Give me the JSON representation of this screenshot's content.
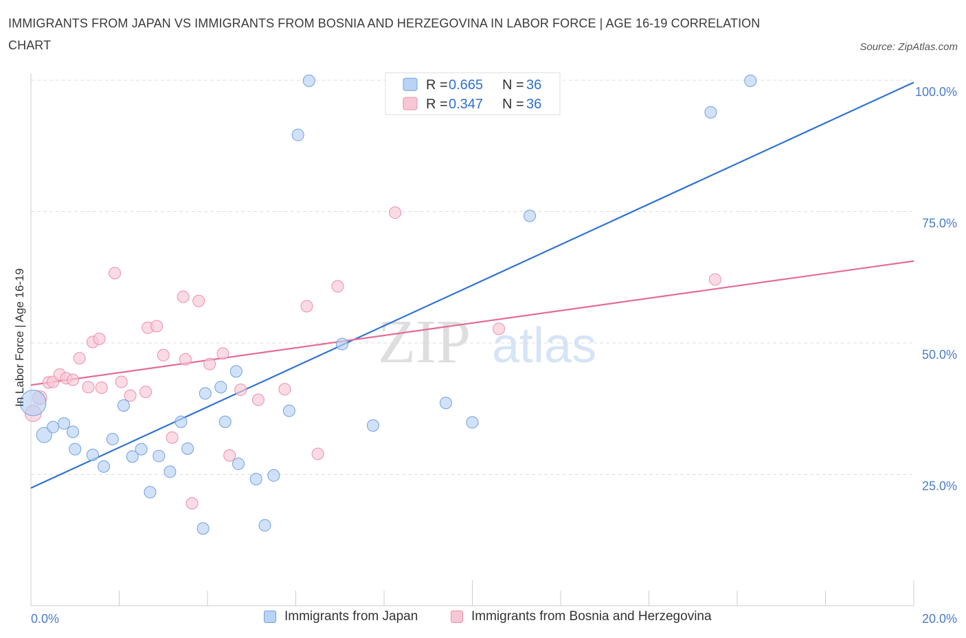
{
  "title": "IMMIGRANTS FROM JAPAN VS IMMIGRANTS FROM BOSNIA AND HERZEGOVINA IN LABOR FORCE | AGE 16-19 CORRELATION CHART",
  "source": "Source: ZipAtlas.com",
  "watermark": {
    "zip": "ZIP",
    "atlas": "atlas"
  },
  "legend": {
    "r_label": "R = ",
    "n_label": "N = ",
    "entries": [
      {
        "r": "0.665",
        "n": "36"
      },
      {
        "r": "0.347",
        "n": "36"
      }
    ]
  },
  "colors": {
    "japan_fill": "#b9d3f5",
    "japan_stroke": "#6f9fe0",
    "japan_line": "#2f72d0",
    "bosnia_fill": "#f8c7d6",
    "bosnia_stroke": "#ea8fab",
    "bosnia_line": "#e56b94",
    "tick_text": "#4a7ccc"
  },
  "chart_data": {
    "type": "scatter",
    "title": "IMMIGRANTS FROM JAPAN VS IMMIGRANTS FROM BOSNIA AND HERZEGOVINA IN LABOR FORCE | AGE 16-19 CORRELATION CHART",
    "xlabel": "",
    "ylabel": "In Labor Force | Age 16-19",
    "xlim": [
      0,
      20
    ],
    "ylim": [
      0,
      100
    ],
    "x_ticks": [
      "0.0%",
      "20.0%"
    ],
    "y_ticks": [
      "25.0%",
      "50.0%",
      "75.0%",
      "100.0%"
    ],
    "grid": true,
    "legend_position": "top-center",
    "series": [
      {
        "name": "Immigrants from Japan",
        "r": 0.665,
        "n": 36,
        "trend": [
          [
            0,
            22.4
          ],
          [
            20,
            99.6
          ]
        ],
        "points": [
          [
            0.05,
            38.6,
            2.2
          ],
          [
            0.3,
            32.5,
            1.3
          ],
          [
            0.5,
            34.0,
            1
          ],
          [
            0.75,
            34.7,
            1
          ],
          [
            0.95,
            33.1,
            1
          ],
          [
            1.0,
            29.8,
            1
          ],
          [
            1.4,
            28.7,
            1
          ],
          [
            1.65,
            26.5,
            1
          ],
          [
            1.85,
            31.7,
            1
          ],
          [
            2.1,
            38.1,
            1
          ],
          [
            2.3,
            28.4,
            1
          ],
          [
            2.5,
            29.8,
            1
          ],
          [
            2.7,
            21.6,
            1
          ],
          [
            2.9,
            28.5,
            1
          ],
          [
            3.15,
            25.5,
            1
          ],
          [
            3.4,
            35.0,
            1
          ],
          [
            3.55,
            29.9,
            1
          ],
          [
            3.9,
            14.7,
            1
          ],
          [
            3.95,
            40.4,
            1
          ],
          [
            4.3,
            41.6,
            1
          ],
          [
            4.4,
            35.0,
            1
          ],
          [
            4.65,
            44.6,
            1
          ],
          [
            4.7,
            27.0,
            1
          ],
          [
            5.1,
            24.1,
            1
          ],
          [
            5.3,
            15.3,
            1
          ],
          [
            5.5,
            24.8,
            1
          ],
          [
            5.85,
            37.1,
            1
          ],
          [
            6.05,
            89.6,
            1
          ],
          [
            6.3,
            99.9,
            1
          ],
          [
            7.05,
            49.8,
            1
          ],
          [
            7.75,
            34.3,
            1
          ],
          [
            9.4,
            38.6,
            1
          ],
          [
            10.0,
            34.9,
            1
          ],
          [
            11.3,
            74.2,
            1
          ],
          [
            15.4,
            93.9,
            1
          ],
          [
            16.3,
            99.9,
            1
          ]
        ]
      },
      {
        "name": "Immigrants from Bosnia and Herzegovina",
        "r": 0.347,
        "n": 36,
        "trend": [
          [
            0,
            42.0
          ],
          [
            20,
            65.6
          ]
        ],
        "points": [
          [
            0.05,
            36.6,
            1.4
          ],
          [
            0.2,
            39.6,
            1.2
          ],
          [
            0.4,
            42.5,
            1
          ],
          [
            0.5,
            42.6,
            1
          ],
          [
            0.65,
            44.0,
            1
          ],
          [
            0.8,
            43.3,
            1
          ],
          [
            0.95,
            43.0,
            1
          ],
          [
            1.1,
            47.1,
            1
          ],
          [
            1.3,
            41.6,
            1
          ],
          [
            1.4,
            50.2,
            1
          ],
          [
            1.55,
            50.8,
            1
          ],
          [
            1.6,
            41.5,
            1
          ],
          [
            1.9,
            63.3,
            1
          ],
          [
            2.05,
            42.6,
            1
          ],
          [
            2.25,
            40.0,
            1
          ],
          [
            2.6,
            40.7,
            1
          ],
          [
            2.65,
            52.9,
            1
          ],
          [
            2.85,
            53.2,
            1
          ],
          [
            3.0,
            47.7,
            1
          ],
          [
            3.2,
            32.0,
            1
          ],
          [
            3.45,
            58.8,
            1
          ],
          [
            3.5,
            46.9,
            1
          ],
          [
            3.65,
            19.5,
            1
          ],
          [
            3.8,
            58.0,
            1
          ],
          [
            4.05,
            46.0,
            1
          ],
          [
            4.35,
            48.0,
            1
          ],
          [
            4.5,
            28.6,
            1
          ],
          [
            4.75,
            41.1,
            1
          ],
          [
            5.15,
            39.2,
            1
          ],
          [
            5.75,
            41.2,
            1
          ],
          [
            6.25,
            57.0,
            1
          ],
          [
            6.5,
            28.9,
            1
          ],
          [
            6.95,
            60.8,
            1
          ],
          [
            8.25,
            74.8,
            1
          ],
          [
            10.6,
            52.7,
            1
          ],
          [
            15.5,
            62.1,
            1
          ]
        ]
      }
    ]
  }
}
